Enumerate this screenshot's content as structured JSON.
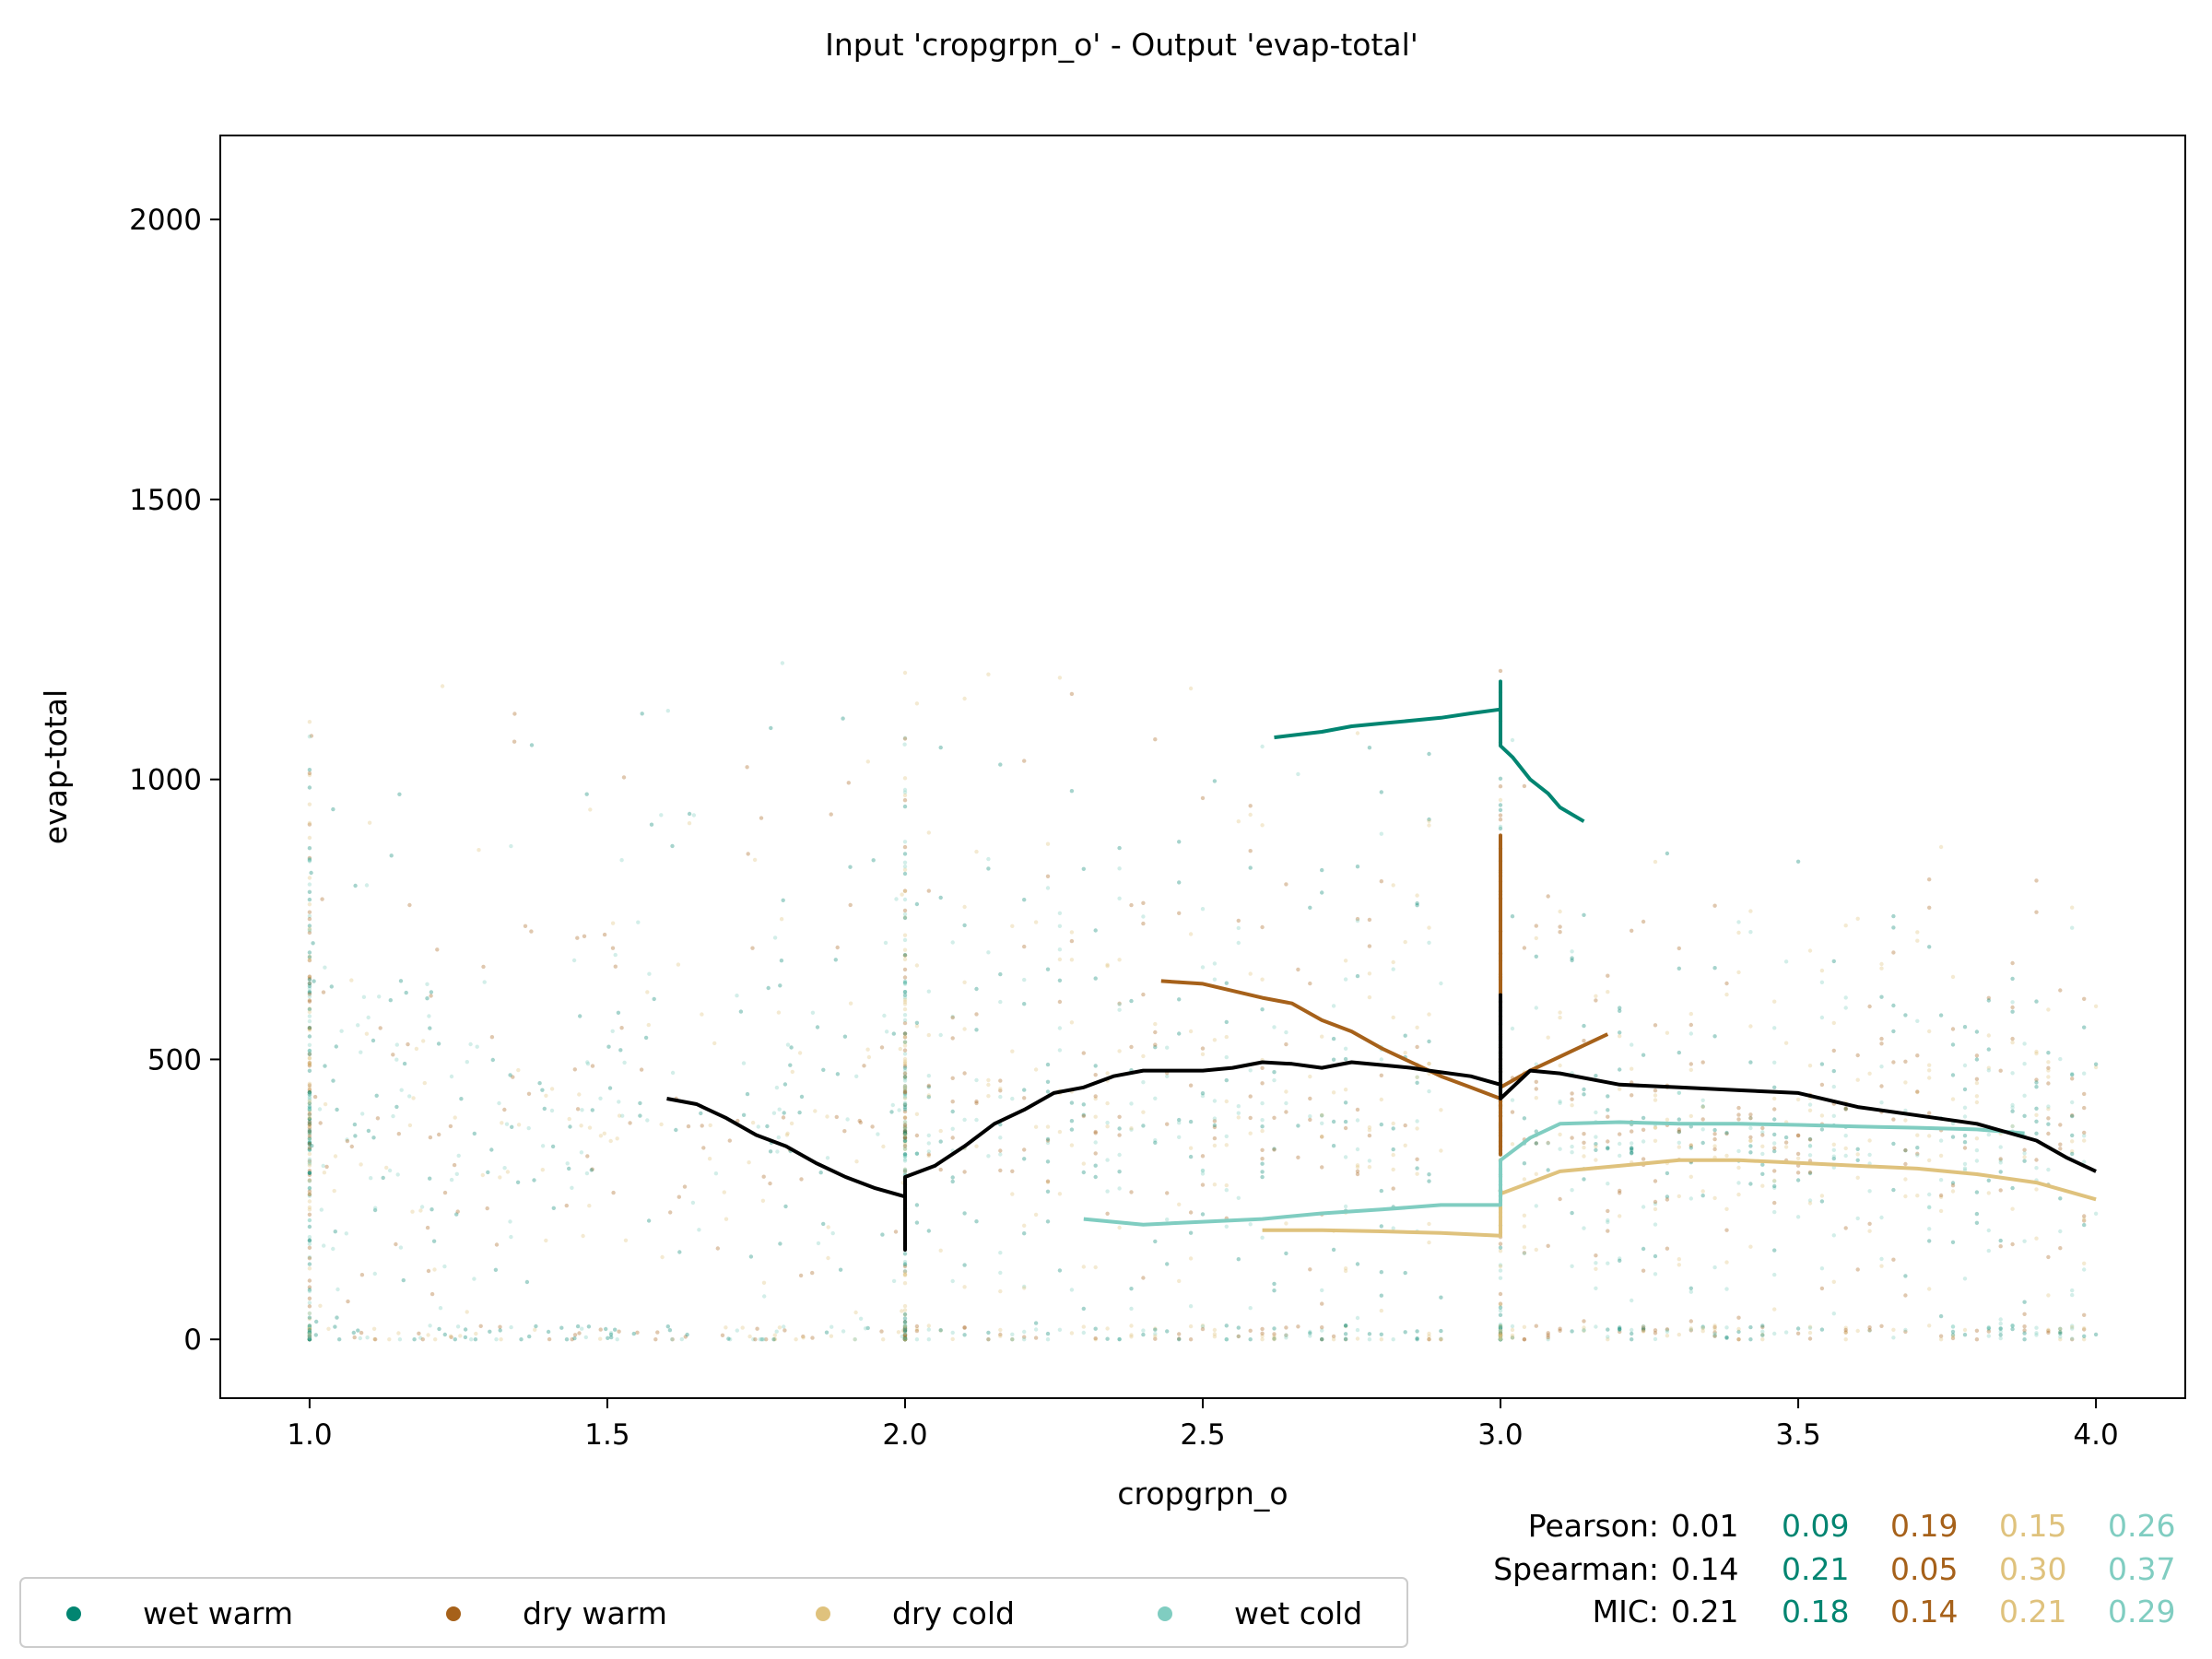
{
  "chart_data": {
    "type": "scatter",
    "title": "Input 'cropgrpn_o' - Output 'evap-total'",
    "xlabel": "cropgrpn_o",
    "ylabel": "evap-total",
    "xlim": [
      0.85,
      4.15
    ],
    "ylim": [
      -105,
      2150
    ],
    "xticks": [
      1.0,
      1.5,
      2.0,
      2.5,
      3.0,
      3.5,
      4.0
    ],
    "xtick_labels": [
      "1.0",
      "1.5",
      "2.0",
      "2.5",
      "3.0",
      "3.5",
      "4.0"
    ],
    "yticks": [
      0,
      500,
      1000,
      1500,
      2000
    ],
    "ytick_labels": [
      "0",
      "500",
      "1000",
      "1500",
      "2000"
    ],
    "grid": false,
    "legend_position": "bottom-left",
    "series": [
      {
        "name": "wet warm",
        "color": "#018571",
        "trend": [
          [
            2.62,
            1075
          ],
          [
            2.7,
            1085
          ],
          [
            2.75,
            1095
          ],
          [
            2.8,
            1100
          ],
          [
            2.85,
            1105
          ],
          [
            2.9,
            1110
          ],
          [
            2.95,
            1118
          ],
          [
            3.0,
            1125
          ],
          [
            3.0,
            1175
          ],
          [
            3.0,
            1060
          ],
          [
            3.02,
            1040
          ],
          [
            3.05,
            1000
          ],
          [
            3.08,
            975
          ],
          [
            3.1,
            950
          ],
          [
            3.14,
            925
          ]
        ]
      },
      {
        "name": "dry warm",
        "color": "#a6611a",
        "trend": [
          [
            2.43,
            640
          ],
          [
            2.5,
            635
          ],
          [
            2.6,
            610
          ],
          [
            2.65,
            600
          ],
          [
            2.7,
            570
          ],
          [
            2.75,
            550
          ],
          [
            2.8,
            520
          ],
          [
            2.85,
            495
          ],
          [
            2.9,
            470
          ],
          [
            2.95,
            450
          ],
          [
            3.0,
            430
          ],
          [
            3.0,
            330
          ],
          [
            3.0,
            900
          ],
          [
            3.0,
            450
          ],
          [
            3.05,
            480
          ],
          [
            3.1,
            505
          ],
          [
            3.15,
            530
          ],
          [
            3.18,
            545
          ]
        ]
      },
      {
        "name": "dry cold",
        "color": "#dfc27d",
        "trend": [
          [
            2.6,
            195
          ],
          [
            2.7,
            195
          ],
          [
            2.8,
            193
          ],
          [
            2.9,
            190
          ],
          [
            3.0,
            185
          ],
          [
            3.0,
            260
          ],
          [
            3.05,
            280
          ],
          [
            3.1,
            300
          ],
          [
            3.2,
            310
          ],
          [
            3.3,
            320
          ],
          [
            3.4,
            320
          ],
          [
            3.5,
            315
          ],
          [
            3.6,
            310
          ],
          [
            3.7,
            305
          ],
          [
            3.8,
            295
          ],
          [
            3.9,
            280
          ],
          [
            4.0,
            250
          ]
        ]
      },
      {
        "name": "wet cold",
        "color": "#80cdc1",
        "trend": [
          [
            2.3,
            215
          ],
          [
            2.4,
            205
          ],
          [
            2.5,
            210
          ],
          [
            2.6,
            215
          ],
          [
            2.7,
            225
          ],
          [
            2.8,
            232
          ],
          [
            2.9,
            240
          ],
          [
            3.0,
            240
          ],
          [
            3.0,
            320
          ],
          [
            3.05,
            360
          ],
          [
            3.1,
            385
          ],
          [
            3.2,
            388
          ],
          [
            3.3,
            385
          ],
          [
            3.4,
            385
          ],
          [
            3.5,
            383
          ],
          [
            3.6,
            380
          ],
          [
            3.7,
            378
          ],
          [
            3.8,
            375
          ],
          [
            3.88,
            368
          ]
        ]
      }
    ],
    "overall_trend": {
      "color": "#000000",
      "points": [
        [
          1.6,
          430
        ],
        [
          1.65,
          420
        ],
        [
          1.7,
          395
        ],
        [
          1.75,
          365
        ],
        [
          1.8,
          345
        ],
        [
          1.85,
          315
        ],
        [
          1.9,
          290
        ],
        [
          1.95,
          270
        ],
        [
          2.0,
          255
        ],
        [
          2.0,
          160
        ],
        [
          2.0,
          290
        ],
        [
          2.05,
          310
        ],
        [
          2.1,
          345
        ],
        [
          2.15,
          385
        ],
        [
          2.2,
          410
        ],
        [
          2.25,
          440
        ],
        [
          2.3,
          450
        ],
        [
          2.35,
          470
        ],
        [
          2.4,
          480
        ],
        [
          2.45,
          480
        ],
        [
          2.5,
          480
        ],
        [
          2.55,
          485
        ],
        [
          2.6,
          495
        ],
        [
          2.65,
          492
        ],
        [
          2.7,
          485
        ],
        [
          2.75,
          495
        ],
        [
          2.8,
          490
        ],
        [
          2.85,
          485
        ],
        [
          2.88,
          480
        ],
        [
          2.95,
          470
        ],
        [
          3.0,
          455
        ],
        [
          3.0,
          615
        ],
        [
          3.0,
          430
        ],
        [
          3.05,
          480
        ],
        [
          3.1,
          475
        ],
        [
          3.2,
          455
        ],
        [
          3.3,
          450
        ],
        [
          3.4,
          445
        ],
        [
          3.5,
          440
        ],
        [
          3.6,
          415
        ],
        [
          3.7,
          400
        ],
        [
          3.8,
          385
        ],
        [
          3.9,
          355
        ],
        [
          3.95,
          325
        ],
        [
          4.0,
          300
        ]
      ]
    },
    "stats": {
      "labels": [
        "Pearson:",
        "Spearman:",
        "MIC:"
      ],
      "overall": [
        "0.01",
        "0.14",
        "0.21"
      ],
      "groups": [
        {
          "color": "#018571",
          "values": [
            "0.09",
            "0.21",
            "0.18"
          ]
        },
        {
          "color": "#a6611a",
          "values": [
            "0.19",
            "0.05",
            "0.14"
          ]
        },
        {
          "color": "#dfc27d",
          "values": [
            "0.15",
            "0.30",
            "0.21"
          ]
        },
        {
          "color": "#80cdc1",
          "values": [
            "0.26",
            "0.37",
            "0.29"
          ]
        }
      ]
    }
  }
}
